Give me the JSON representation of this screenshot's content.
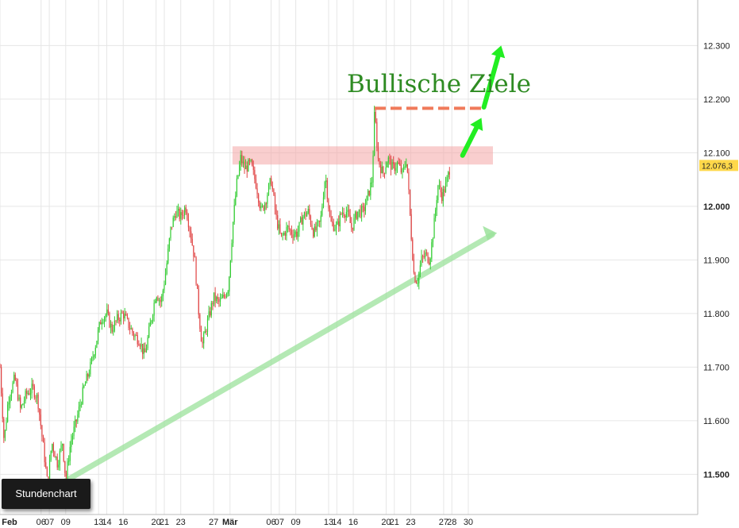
{
  "chart_data": {
    "type": "candlestick",
    "title": "",
    "annotation_title": "Bullische Ziele",
    "timeframe_label": "Stundenchart",
    "last_price_label": "12.076,3",
    "ylim": [
      11425,
      12385
    ],
    "y_ticks": [
      {
        "value": 11500,
        "label": "11.500",
        "bold": true
      },
      {
        "value": 11600,
        "label": "11.600",
        "bold": false
      },
      {
        "value": 11700,
        "label": "11.700",
        "bold": false
      },
      {
        "value": 11800,
        "label": "11.800",
        "bold": false
      },
      {
        "value": 11900,
        "label": "11.900",
        "bold": false
      },
      {
        "value": 12000,
        "label": "12.000",
        "bold": true
      },
      {
        "value": 12100,
        "label": "12.100",
        "bold": false
      },
      {
        "value": 12200,
        "label": "12.200",
        "bold": false
      },
      {
        "value": 12300,
        "label": "12.300",
        "bold": false
      }
    ],
    "x_ticks": [
      {
        "day": 0,
        "label": "Feb",
        "bold": true
      },
      {
        "day": 5,
        "label": "06",
        "bold": false
      },
      {
        "day": 6,
        "label": "07",
        "bold": false
      },
      {
        "day": 8,
        "label": "09",
        "bold": false
      },
      {
        "day": 12,
        "label": "13",
        "bold": false
      },
      {
        "day": 13,
        "label": "14",
        "bold": false
      },
      {
        "day": 15,
        "label": "16",
        "bold": false
      },
      {
        "day": 19,
        "label": "20",
        "bold": false
      },
      {
        "day": 20,
        "label": "21",
        "bold": false
      },
      {
        "day": 22,
        "label": "23",
        "bold": false
      },
      {
        "day": 26,
        "label": "27",
        "bold": false
      },
      {
        "day": 28,
        "label": "Mär",
        "bold": true
      },
      {
        "day": 33,
        "label": "06",
        "bold": false
      },
      {
        "day": 34,
        "label": "07",
        "bold": false
      },
      {
        "day": 36,
        "label": "09",
        "bold": false
      },
      {
        "day": 40,
        "label": "13",
        "bold": false
      },
      {
        "day": 41,
        "label": "14",
        "bold": false
      },
      {
        "day": 43,
        "label": "16",
        "bold": false
      },
      {
        "day": 47,
        "label": "20",
        "bold": false
      },
      {
        "day": 48,
        "label": "21",
        "bold": false
      },
      {
        "day": 50,
        "label": "23",
        "bold": false
      },
      {
        "day": 54,
        "label": "27",
        "bold": false
      },
      {
        "day": 55,
        "label": "28",
        "bold": false
      },
      {
        "day": 57,
        "label": "30",
        "bold": false
      }
    ],
    "xlim_days": [
      0,
      60
    ],
    "price_path": [
      [
        0.0,
        11700
      ],
      [
        0.5,
        11560
      ],
      [
        1.0,
        11640
      ],
      [
        1.8,
        11680
      ],
      [
        2.5,
        11620
      ],
      [
        3.2,
        11650
      ],
      [
        4.0,
        11660
      ],
      [
        4.6,
        11640
      ],
      [
        5.2,
        11560
      ],
      [
        5.8,
        11480
      ],
      [
        6.3,
        11560
      ],
      [
        7.0,
        11520
      ],
      [
        7.6,
        11560
      ],
      [
        8.0,
        11490
      ],
      [
        8.6,
        11560
      ],
      [
        9.3,
        11600
      ],
      [
        10.2,
        11660
      ],
      [
        11.0,
        11700
      ],
      [
        11.6,
        11740
      ],
      [
        12.3,
        11790
      ],
      [
        13.0,
        11800
      ],
      [
        13.6,
        11770
      ],
      [
        14.3,
        11790
      ],
      [
        15.0,
        11800
      ],
      [
        15.6,
        11780
      ],
      [
        16.3,
        11760
      ],
      [
        17.0,
        11750
      ],
      [
        17.6,
        11720
      ],
      [
        18.3,
        11780
      ],
      [
        19.0,
        11840
      ],
      [
        19.6,
        11820
      ],
      [
        20.2,
        11880
      ],
      [
        20.8,
        11960
      ],
      [
        21.4,
        11990
      ],
      [
        22.0,
        11980
      ],
      [
        22.6,
        12000
      ],
      [
        23.2,
        11950
      ],
      [
        23.7,
        11900
      ],
      [
        24.2,
        11800
      ],
      [
        24.6,
        11740
      ],
      [
        25.2,
        11780
      ],
      [
        26.0,
        11830
      ],
      [
        26.7,
        11820
      ],
      [
        27.2,
        11830
      ],
      [
        27.8,
        11850
      ],
      [
        28.3,
        11960
      ],
      [
        28.8,
        12040
      ],
      [
        29.3,
        12090
      ],
      [
        29.8,
        12070
      ],
      [
        30.5,
        12080
      ],
      [
        31.2,
        12040
      ],
      [
        31.8,
        11990
      ],
      [
        32.3,
        12010
      ],
      [
        33.0,
        12050
      ],
      [
        33.6,
        11980
      ],
      [
        34.2,
        11940
      ],
      [
        35.0,
        11960
      ],
      [
        35.6,
        11950
      ],
      [
        36.2,
        11950
      ],
      [
        36.8,
        11980
      ],
      [
        37.5,
        11990
      ],
      [
        38.2,
        11950
      ],
      [
        39.0,
        11970
      ],
      [
        39.6,
        12060
      ],
      [
        40.2,
        11970
      ],
      [
        41.0,
        11960
      ],
      [
        41.6,
        11990
      ],
      [
        42.2,
        11990
      ],
      [
        42.8,
        11960
      ],
      [
        43.5,
        11990
      ],
      [
        44.2,
        11990
      ],
      [
        44.8,
        12020
      ],
      [
        45.3,
        12050
      ],
      [
        45.6,
        12180
      ],
      [
        46.0,
        12090
      ],
      [
        46.6,
        12060
      ],
      [
        47.2,
        12090
      ],
      [
        47.8,
        12070
      ],
      [
        48.4,
        12080
      ],
      [
        49.0,
        12060
      ],
      [
        49.5,
        12090
      ],
      [
        50.0,
        11960
      ],
      [
        50.4,
        11870
      ],
      [
        50.8,
        11860
      ],
      [
        51.3,
        11900
      ],
      [
        51.8,
        11910
      ],
      [
        52.3,
        11900
      ],
      [
        52.8,
        11960
      ],
      [
        53.3,
        12040
      ],
      [
        53.8,
        12020
      ],
      [
        54.3,
        12040
      ],
      [
        54.8,
        12076
      ]
    ],
    "resistance_zone": {
      "low": 12078,
      "high": 12112,
      "from_day": 28.3,
      "to_day": 60
    },
    "target_line": {
      "value": 12183,
      "from_day": 45.6,
      "to_day": 58.8
    },
    "support_trendline": {
      "from": [
        6.0,
        11470
      ],
      "to": [
        60.5,
        11950
      ]
    },
    "target_arrows": [
      {
        "from": [
          56.3,
          12095
        ],
        "to": [
          58.6,
          12165
        ]
      },
      {
        "from": [
          58.9,
          12185
        ],
        "to": [
          61.0,
          12300
        ]
      }
    ],
    "colors": {
      "up": "#33cc33",
      "down": "#e04545",
      "grid": "#e6e6e6",
      "resistance": "#f4a6a6",
      "target_line": "#f07a5a",
      "trendline": "#9be29b",
      "arrow": "#22ee22",
      "title": "#2e8b22",
      "last_price_bg": "#ffd84a"
    }
  }
}
